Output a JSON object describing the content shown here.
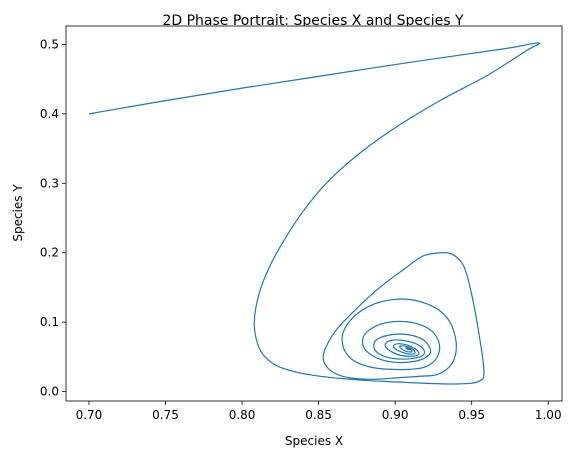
{
  "chart_data": {
    "type": "line",
    "title": "2D Phase Portrait: Species X and Species Y",
    "xlabel": "Species X",
    "ylabel": "Species Y",
    "xlim": [
      0.685,
      1.009
    ],
    "ylim": [
      -0.0135,
      0.5265
    ],
    "xticks": [
      "0.70",
      "0.75",
      "0.80",
      "0.85",
      "0.90",
      "0.95",
      "1.00"
    ],
    "yticks": [
      "0.0",
      "0.1",
      "0.2",
      "0.3",
      "0.4",
      "0.5"
    ],
    "grid": false,
    "line_color": "#1f77b4",
    "series": [
      {
        "x": [
          0.7,
          0.75,
          0.8,
          0.85,
          0.9,
          0.95,
          0.975,
          0.994,
          0.985,
          0.96,
          0.93,
          0.9,
          0.875,
          0.855,
          0.84,
          0.828,
          0.818,
          0.811,
          0.808,
          0.81,
          0.815,
          0.825,
          0.845,
          0.875,
          0.91,
          0.94,
          0.955,
          0.958,
          0.955,
          0.95,
          0.945,
          0.938,
          0.93,
          0.918,
          0.905,
          0.89,
          0.875,
          0.862,
          0.855,
          0.853,
          0.856,
          0.862,
          0.87,
          0.88,
          0.89,
          0.902,
          0.915,
          0.928,
          0.937,
          0.94,
          0.937,
          0.93,
          0.92,
          0.908,
          0.897,
          0.885,
          0.873,
          0.866,
          0.866,
          0.87,
          0.877,
          0.887,
          0.898,
          0.909,
          0.919,
          0.926,
          0.929,
          0.928,
          0.923,
          0.914,
          0.905,
          0.896,
          0.887,
          0.88,
          0.879,
          0.883,
          0.891,
          0.901,
          0.911,
          0.919,
          0.923,
          0.922,
          0.918,
          0.911,
          0.903,
          0.895,
          0.888,
          0.886,
          0.888,
          0.894,
          0.903,
          0.912,
          0.918,
          0.919,
          0.916,
          0.911,
          0.904,
          0.898,
          0.894,
          0.894,
          0.898,
          0.904,
          0.911,
          0.915,
          0.915,
          0.912,
          0.908,
          0.903,
          0.9,
          0.899,
          0.902,
          0.907,
          0.911,
          0.913,
          0.912,
          0.909,
          0.905,
          0.903,
          0.904,
          0.907,
          0.91,
          0.911,
          0.91,
          0.908,
          0.907,
          0.908,
          0.91
        ],
        "y": [
          0.4,
          0.419,
          0.437,
          0.454,
          0.471,
          0.487,
          0.495,
          0.502,
          0.49,
          0.455,
          0.42,
          0.38,
          0.34,
          0.3,
          0.26,
          0.22,
          0.18,
          0.14,
          0.1,
          0.07,
          0.05,
          0.035,
          0.024,
          0.017,
          0.013,
          0.011,
          0.015,
          0.03,
          0.08,
          0.14,
          0.18,
          0.197,
          0.2,
          0.195,
          0.175,
          0.15,
          0.12,
          0.09,
          0.065,
          0.048,
          0.034,
          0.025,
          0.02,
          0.018,
          0.018,
          0.02,
          0.022,
          0.025,
          0.04,
          0.065,
          0.095,
          0.115,
          0.127,
          0.133,
          0.132,
          0.125,
          0.108,
          0.085,
          0.065,
          0.05,
          0.04,
          0.034,
          0.032,
          0.032,
          0.035,
          0.045,
          0.06,
          0.075,
          0.089,
          0.098,
          0.101,
          0.1,
          0.094,
          0.082,
          0.067,
          0.055,
          0.046,
          0.042,
          0.043,
          0.048,
          0.056,
          0.066,
          0.075,
          0.081,
          0.083,
          0.081,
          0.075,
          0.066,
          0.057,
          0.05,
          0.047,
          0.048,
          0.052,
          0.059,
          0.066,
          0.071,
          0.074,
          0.074,
          0.07,
          0.064,
          0.057,
          0.052,
          0.051,
          0.053,
          0.058,
          0.063,
          0.067,
          0.069,
          0.068,
          0.064,
          0.059,
          0.055,
          0.054,
          0.056,
          0.06,
          0.064,
          0.066,
          0.065,
          0.062,
          0.058,
          0.057,
          0.058,
          0.061,
          0.063,
          0.063,
          0.061,
          0.06
        ]
      }
    ]
  }
}
